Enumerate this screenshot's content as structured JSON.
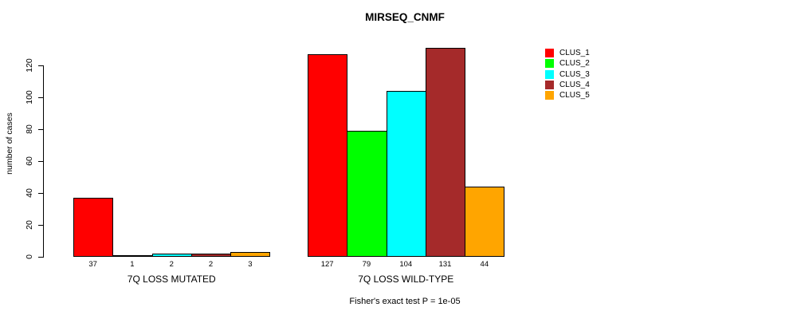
{
  "title": "MIRSEQ_CNMF",
  "footer": "Fisher's exact test P = 1e-05",
  "chart_data": {
    "type": "bar",
    "title": "MIRSEQ_CNMF",
    "xlabel": "",
    "ylabel": "number of cases",
    "ylim": [
      0,
      131
    ],
    "yticks": [
      0,
      20,
      40,
      60,
      80,
      100,
      120
    ],
    "grid": false,
    "legend_position": "right",
    "series": [
      {
        "name": "CLUS_1",
        "color": "#ff0000"
      },
      {
        "name": "CLUS_2",
        "color": "#00ff00"
      },
      {
        "name": "CLUS_3",
        "color": "#00ffff"
      },
      {
        "name": "CLUS_4",
        "color": "#a52a2a"
      },
      {
        "name": "CLUS_5",
        "color": "#ffa500"
      }
    ],
    "groups": [
      {
        "label": "7Q LOSS MUTATED",
        "values": [
          37,
          1,
          2,
          2,
          3
        ]
      },
      {
        "label": "7Q LOSS WILD-TYPE",
        "values": [
          127,
          79,
          104,
          131,
          44
        ]
      }
    ],
    "annotation": "Fisher's exact test P = 1e-05"
  }
}
